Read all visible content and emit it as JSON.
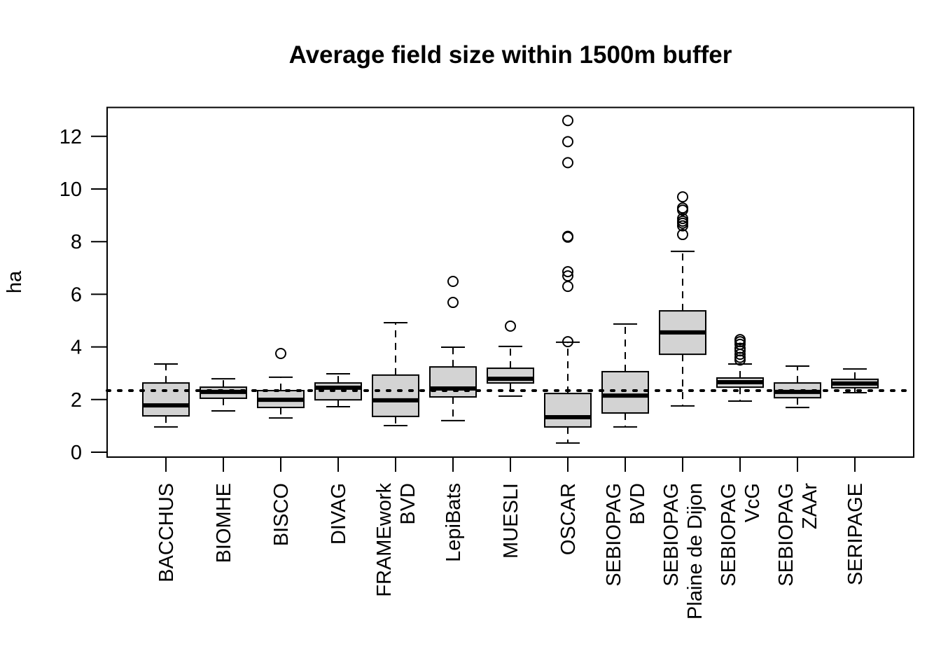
{
  "chart_data": {
    "type": "boxplot",
    "title": "Average field size within 1500m buffer",
    "xlabel": "",
    "ylabel": "ha",
    "ylim": [
      0,
      13
    ],
    "yticks": [
      0,
      2,
      4,
      6,
      8,
      10,
      12
    ],
    "grid": false,
    "reference_line": {
      "value": 2.34,
      "style": "dotted"
    },
    "box_fill": "#d3d3d3",
    "categories": [
      {
        "label_lines": [
          "BACCHUS"
        ]
      },
      {
        "label_lines": [
          "BIOMHE"
        ]
      },
      {
        "label_lines": [
          "BISCO"
        ]
      },
      {
        "label_lines": [
          "DIVAG"
        ]
      },
      {
        "label_lines": [
          "FRAMEwork",
          "BVD"
        ]
      },
      {
        "label_lines": [
          "LepiBats"
        ]
      },
      {
        "label_lines": [
          "MUESLI"
        ]
      },
      {
        "label_lines": [
          "OSCAR"
        ]
      },
      {
        "label_lines": [
          "SEBIOPAG",
          "BVD"
        ]
      },
      {
        "label_lines": [
          "SEBIOPAG",
          "Plaine de Dijon"
        ]
      },
      {
        "label_lines": [
          "SEBIOPAG",
          "VcG"
        ]
      },
      {
        "label_lines": [
          "SEBIOPAG",
          "ZAAr"
        ]
      },
      {
        "label_lines": [
          "SERIPAGE"
        ]
      }
    ],
    "series": [
      {
        "name": "BACCHUS",
        "whisker_low": 0.96,
        "q1": 1.38,
        "median": 1.78,
        "q3": 2.63,
        "whisker_high": 3.35,
        "outliers": []
      },
      {
        "name": "BIOMHE",
        "whisker_low": 1.57,
        "q1": 2.05,
        "median": 2.29,
        "q3": 2.47,
        "whisker_high": 2.79,
        "outliers": []
      },
      {
        "name": "BISCO",
        "whisker_low": 1.3,
        "q1": 1.7,
        "median": 1.99,
        "q3": 2.34,
        "whisker_high": 2.85,
        "outliers": [
          3.75
        ]
      },
      {
        "name": "DIVAG",
        "whisker_low": 1.73,
        "q1": 1.99,
        "median": 2.45,
        "q3": 2.63,
        "whisker_high": 2.98,
        "outliers": []
      },
      {
        "name": "FRAMEwork BVD",
        "whisker_low": 1.01,
        "q1": 1.36,
        "median": 1.97,
        "q3": 2.93,
        "whisker_high": 4.92,
        "outliers": []
      },
      {
        "name": "LepiBats",
        "whisker_low": 1.2,
        "q1": 2.1,
        "median": 2.42,
        "q3": 3.24,
        "whisker_high": 3.99,
        "outliers": [
          5.69,
          6.49
        ]
      },
      {
        "name": "MUESLI",
        "whisker_low": 2.13,
        "q1": 2.63,
        "median": 2.79,
        "q3": 3.19,
        "whisker_high": 4.02,
        "outliers": [
          4.79
        ]
      },
      {
        "name": "OSCAR",
        "whisker_low": 0.35,
        "q1": 0.96,
        "median": 1.33,
        "q3": 2.23,
        "whisker_high": 4.18,
        "outliers": [
          4.2,
          6.3,
          6.7,
          6.86,
          8.17,
          8.2,
          11.0,
          11.8,
          12.6
        ]
      },
      {
        "name": "SEBIOPAG BVD",
        "whisker_low": 0.96,
        "q1": 1.49,
        "median": 2.15,
        "q3": 3.06,
        "whisker_high": 4.87,
        "outliers": []
      },
      {
        "name": "SEBIOPAG Plaine de Dijon",
        "whisker_low": 1.76,
        "q1": 3.72,
        "median": 4.55,
        "q3": 5.37,
        "whisker_high": 7.63,
        "outliers": [
          8.27,
          8.6,
          8.7,
          8.78,
          8.88,
          9.2,
          9.28,
          9.7
        ]
      },
      {
        "name": "SEBIOPAG VcG",
        "whisker_low": 1.94,
        "q1": 2.47,
        "median": 2.66,
        "q3": 2.82,
        "whisker_high": 3.35,
        "outliers": [
          3.5,
          3.6,
          3.72,
          3.85,
          3.95,
          4.1,
          4.2,
          4.28
        ]
      },
      {
        "name": "SEBIOPAG ZAAr",
        "whisker_low": 1.7,
        "q1": 2.07,
        "median": 2.29,
        "q3": 2.63,
        "whisker_high": 3.27,
        "outliers": []
      },
      {
        "name": "SERIPAGE",
        "whisker_low": 2.26,
        "q1": 2.45,
        "median": 2.61,
        "q3": 2.77,
        "whisker_high": 3.16,
        "outliers": []
      }
    ]
  }
}
